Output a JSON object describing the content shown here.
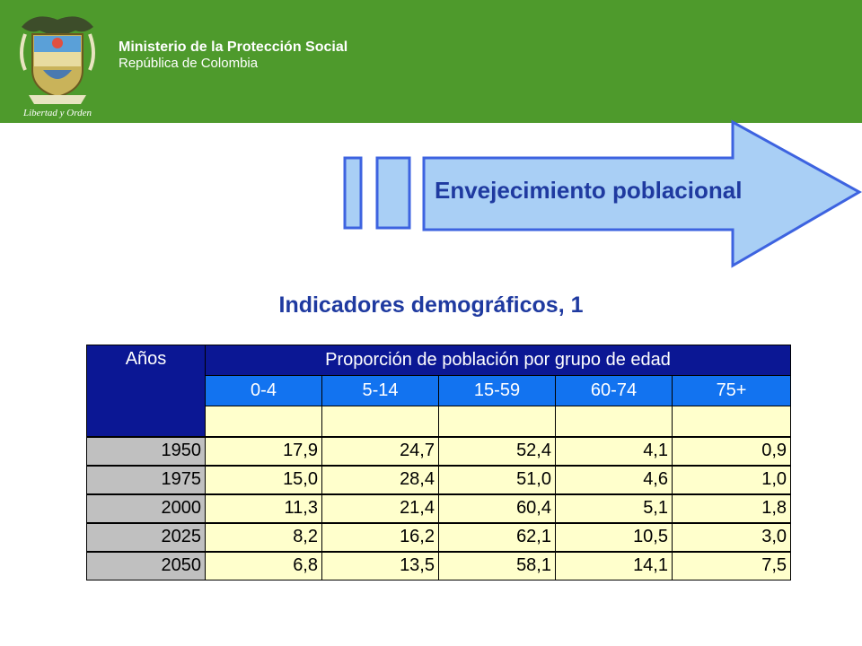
{
  "header": {
    "ministry": "Ministerio de la Protección Social",
    "country": "República de Colombia",
    "motto": "Libertad y Orden",
    "logo_icon": "colombia-coat-of-arms-icon",
    "background": "#4e9a2c"
  },
  "banner": {
    "title": "Envejecimiento poblacional",
    "arrow_fill": "#a9cff5",
    "arrow_stroke": "#3d63e0"
  },
  "section_title": "Indicadores demográficos,  1",
  "table": {
    "years_header": "Años",
    "group_header": "Proporción de población por grupo de edad",
    "age_groups": [
      "0-4",
      "5-14",
      "15-59",
      "60-74",
      "75+"
    ],
    "rows": [
      {
        "year": "1950",
        "values": [
          "17,9",
          "24,7",
          "52,4",
          "4,1",
          "0,9"
        ]
      },
      {
        "year": "1975",
        "values": [
          "15,0",
          "28,4",
          "51,0",
          "4,6",
          "1,0"
        ]
      },
      {
        "year": "2000",
        "values": [
          "11,3",
          "21,4",
          "60,4",
          "5,1",
          "1,8"
        ]
      },
      {
        "year": "2025",
        "values": [
          "8,2",
          "16,2",
          "62,1",
          "10,5",
          "3,0"
        ]
      },
      {
        "year": "2050",
        "values": [
          "6,8",
          "13,5",
          "58,1",
          "14,1",
          "7,5"
        ]
      }
    ]
  }
}
